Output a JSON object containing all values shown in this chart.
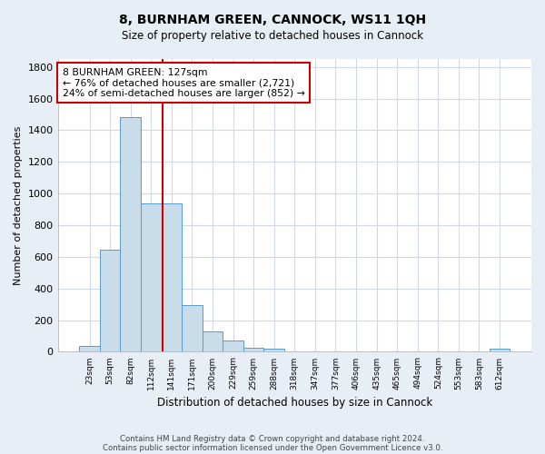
{
  "title1": "8, BURNHAM GREEN, CANNOCK, WS11 1QH",
  "title2": "Size of property relative to detached houses in Cannock",
  "xlabel": "Distribution of detached houses by size in Cannock",
  "ylabel": "Number of detached properties",
  "footnote1": "Contains HM Land Registry data © Crown copyright and database right 2024.",
  "footnote2": "Contains public sector information licensed under the Open Government Licence v3.0.",
  "bar_labels": [
    "23sqm",
    "53sqm",
    "82sqm",
    "112sqm",
    "141sqm",
    "171sqm",
    "200sqm",
    "229sqm",
    "259sqm",
    "288sqm",
    "318sqm",
    "347sqm",
    "377sqm",
    "406sqm",
    "435sqm",
    "465sqm",
    "494sqm",
    "524sqm",
    "553sqm",
    "583sqm",
    "612sqm"
  ],
  "bar_values": [
    35,
    645,
    1480,
    935,
    935,
    295,
    130,
    70,
    25,
    20,
    5,
    5,
    5,
    5,
    5,
    5,
    5,
    5,
    5,
    5,
    20
  ],
  "bar_color": "#c9dcea",
  "bar_edge_color": "#5b9bc8",
  "ylim": [
    0,
    1850
  ],
  "yticks": [
    0,
    200,
    400,
    600,
    800,
    1000,
    1200,
    1400,
    1600,
    1800
  ],
  "vline_x": 3.55,
  "vline_color": "#cc0000",
  "annotation_text": "8 BURNHAM GREEN: 127sqm\n← 76% of detached houses are smaller (2,721)\n24% of semi-detached houses are larger (852) →",
  "fig_bg_color": "#e8eef5",
  "plot_bg_color": "#ffffff",
  "grid_color": "#d0d8e8"
}
